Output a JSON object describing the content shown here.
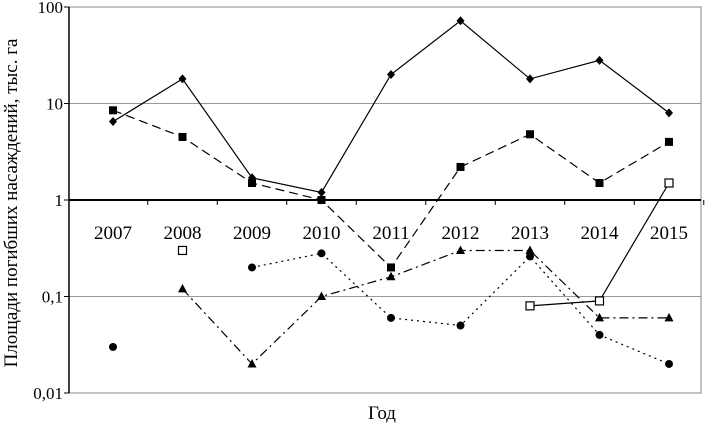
{
  "chart_data": {
    "type": "line",
    "ylabel": "Площади погибших насаждений, тыс. га",
    "xlabel": "Год",
    "yscale": "log",
    "ylim": [
      0.01,
      100
    ],
    "yticks": [
      "0,01",
      "0,1",
      "1",
      "10",
      "100"
    ],
    "grid": "horizontal",
    "categories": [
      "2007",
      "2008",
      "2009",
      "2010",
      "2011",
      "2012",
      "2013",
      "2014",
      "2015"
    ],
    "series": [
      {
        "marker": "diamond-filled",
        "line": "solid",
        "values": [
          6.5,
          18,
          1.7,
          1.2,
          20,
          72,
          18,
          28,
          8
        ]
      },
      {
        "marker": "square-filled",
        "line": "dashed",
        "values": [
          8.5,
          4.5,
          1.5,
          1.0,
          0.2,
          2.2,
          4.8,
          1.5,
          4.0
        ]
      },
      {
        "marker": "triangle-filled",
        "line": "dash-dot",
        "values": [
          null,
          0.12,
          0.02,
          0.1,
          0.16,
          0.3,
          0.3,
          0.06,
          0.06
        ]
      },
      {
        "marker": "circle-filled",
        "line": "dotted",
        "values": [
          0.03,
          null,
          0.2,
          0.28,
          0.06,
          0.05,
          0.26,
          0.04,
          0.02
        ],
        "connected_from_index": 2
      },
      {
        "marker": "square-open",
        "line": "solid",
        "values": [
          null,
          0.3,
          null,
          null,
          null,
          null,
          0.08,
          0.09,
          1.5
        ],
        "connected_from_index": 6
      }
    ]
  }
}
